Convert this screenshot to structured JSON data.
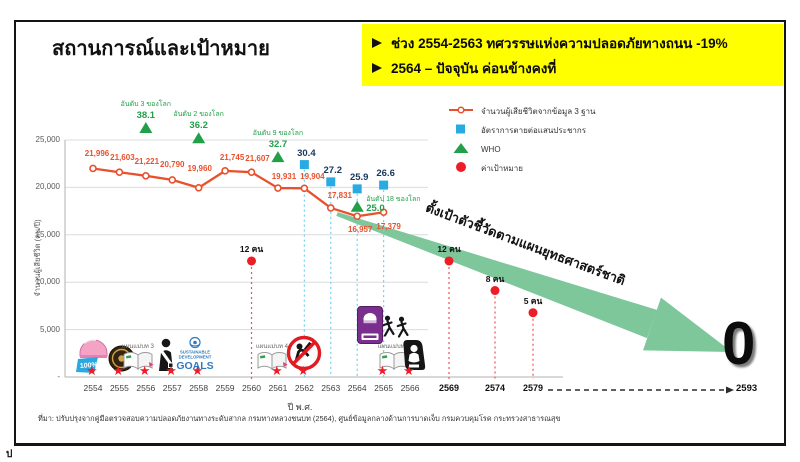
{
  "slide": {
    "title": "สถานการณ์และเป้าหมาย",
    "highlights": [
      "ช่วง 2554-2563 ทศวรรษแห่งความปลอดภัยทางถนน -19%",
      "2564 – ปัจจุบัน ค่อนข้างคงที่"
    ],
    "footnote": "ที่มา: ปรับปรุงจากคู่มือตรวจสอบความปลอดภัยงานทางระดับสากล กรมทางหลวงชนบท (2564), ศูนย์ข้อมูลกลางด้านการบาดเจ็บ กรมควบคุมโรค กระทรวงสาธารณสุข",
    "corner_fragment": "ป"
  },
  "chart_data": {
    "type": "line",
    "xlabel": "ปี พ.ศ.",
    "ylabel": "จำนวนผู้เสียชีวิต (คน/ปี)",
    "ylim": [
      0,
      25000
    ],
    "grid": true,
    "legend_position": "right",
    "ytick_values": [
      25000,
      20000,
      15000,
      10000,
      5000,
      0
    ],
    "ytick_labels": [
      "25,000",
      "20,000",
      "15,000",
      "10,000",
      "5,000",
      "-"
    ],
    "x_ticks": [
      2554,
      2555,
      2556,
      2557,
      2558,
      2559,
      2560,
      2561,
      2562,
      2563,
      2564,
      2565,
      2566
    ],
    "x_ticks_extended": [
      2569,
      2574,
      2579
    ],
    "series": [
      {
        "name": "จำนวนผู้เสียชีวิตจากข้อมูล 3 ฐาน",
        "type": "line",
        "color": "#e8512d",
        "years": [
          2554,
          2555,
          2556,
          2557,
          2558,
          2559,
          2560,
          2561,
          2562,
          2563,
          2564,
          2565
        ],
        "values": [
          21996,
          21603,
          21221,
          20790,
          19960,
          21745,
          21607,
          19931,
          19904,
          17831,
          16957,
          17379
        ],
        "labels": [
          "21,996",
          "21,603",
          "21,221",
          "20,790",
          "19,960",
          "21,745",
          "21,607",
          "19,931",
          "19,904",
          "17,831",
          "16,957",
          "17,379"
        ]
      },
      {
        "name": "อัตราการตายต่อแสนประชากร",
        "type": "square",
        "color": "#29abe2",
        "points": [
          {
            "year": 2562,
            "value": 30.4,
            "label": "30.4"
          },
          {
            "year": 2563,
            "value": 27.2,
            "label": "27.2"
          },
          {
            "year": 2564,
            "value": 25.9,
            "label": "25.9"
          },
          {
            "year": 2565,
            "value": 26.6,
            "label": "26.6"
          }
        ]
      },
      {
        "name": "WHO",
        "type": "triangle",
        "color": "#21a049",
        "points": [
          {
            "year": 2556,
            "value": 38.1,
            "value_label": "38.1",
            "label": "อันดับ 3 ของโลก"
          },
          {
            "year": 2558,
            "value": 36.2,
            "value_label": "36.2",
            "label": "อันดับ 2 ของโลก"
          },
          {
            "year": 2561,
            "value": 32.7,
            "value_label": "32.7",
            "label": "อันดับ 9 ของโลก"
          },
          {
            "year": 2564,
            "value": 25.0,
            "value_label": "25.0",
            "label": "อันดับ 18 ของโลก",
            "label_side": "right"
          }
        ]
      },
      {
        "name": "ค่าเป้าหมาย",
        "type": "dot",
        "color": "#ee1c24",
        "points": [
          {
            "year": 2560,
            "value": 12,
            "label": "12 คน"
          },
          {
            "year": 2569,
            "value": 12,
            "label": "12 คน"
          },
          {
            "year": 2574,
            "value": 8,
            "label": "8 คน"
          },
          {
            "year": 2579,
            "value": 5,
            "label": "5 คน"
          }
        ]
      }
    ],
    "legend": [
      {
        "marker": "line-marker",
        "label": "จำนวนผู้เสียชีวิตจากข้อมูล 3 ฐาน",
        "color": "#e8512d"
      },
      {
        "marker": "square",
        "label": "อัตราการตายต่อแสนประชากร",
        "color": "#29abe2"
      },
      {
        "marker": "triangle",
        "label": "WHO",
        "color": "#21a049"
      },
      {
        "marker": "dot",
        "label": "ค่าเป้าหมาย",
        "color": "#ee1c24"
      }
    ],
    "annotations": {
      "arrow_text": "ตั้งเป้าตัวชี้วัดตามแผนยุทธศาสตร์ชาติ",
      "final_target_value": "0",
      "final_target_year": "2593",
      "arrow_color": "#7dc79b"
    }
  },
  "milestones": [
    {
      "year": 2554,
      "icon": "helmet-100-percent",
      "label": "100%",
      "star": true
    },
    {
      "year": 2555,
      "icon": "royal-emblem",
      "label": "",
      "star": true
    },
    {
      "year": 2556,
      "icon": "master-plan-book",
      "label": "แผนแม่บท 3",
      "star": true
    },
    {
      "year": 2557,
      "icon": "seatbelt",
      "label": "",
      "star": true
    },
    {
      "year": 2558,
      "icon": "sdg-goals",
      "label": "SUSTAINABLE DEVELOPMENT GOALS",
      "star": true
    },
    {
      "year": 2561,
      "icon": "master-plan-book",
      "label": "แผนแม่บท 4",
      "star": true
    },
    {
      "year": 2562,
      "icon": "no-drunk-driving",
      "label": "",
      "star": true
    },
    {
      "year": 2564,
      "icon": "motorcycle-safety-sign",
      "label": "",
      "star": false
    },
    {
      "year": 2565,
      "icon": "pedestrians",
      "label": "",
      "star": false
    },
    {
      "year": 2565,
      "icon": "master-plan-book",
      "label": "แผนแม่บท 5",
      "star": true
    },
    {
      "year": 2566,
      "icon": "child-car-seat",
      "label": "",
      "star": true
    }
  ]
}
